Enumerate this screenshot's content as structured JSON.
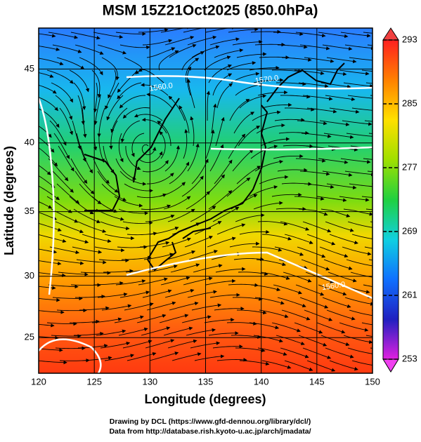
{
  "chart_data": {
    "type": "map",
    "title": "MSM 15Z21Oct2025 (850.0hPa)",
    "x_label": "Longitude (degrees)",
    "y_label": "Latitude  (degrees)",
    "projection": "mercator",
    "xlim": [
      120,
      150
    ],
    "ylim": [
      22,
      47.6
    ],
    "xticks": [
      120,
      125,
      130,
      135,
      140,
      145,
      150
    ],
    "yticks": [
      25,
      30,
      35,
      40,
      45
    ],
    "grid": true,
    "colorbar": {
      "clim": [
        253,
        293
      ],
      "ticks": [
        253,
        261,
        269,
        277,
        285,
        293
      ],
      "colors": [
        "#e020e0",
        "#2020c0",
        "#1070ff",
        "#10d0e0",
        "#20d040",
        "#a0e000",
        "#ffe000",
        "#ff8000",
        "#ff2020"
      ]
    },
    "annotations": [
      {
        "text": "1560.0",
        "lon": 131,
        "lat": 43.8
      },
      {
        "text": "1570.0",
        "lon": 140.5,
        "lat": 44.3
      },
      {
        "text": "1560.0",
        "lon": 146.5,
        "lat": 29.2
      }
    ],
    "footer": [
      "Drawing by DCL (https://www.gfd-dennou.org/library/dcl/)",
      "Data from http://database.rish.kyoto-u.ac.jp/arch/jmadata/"
    ]
  }
}
